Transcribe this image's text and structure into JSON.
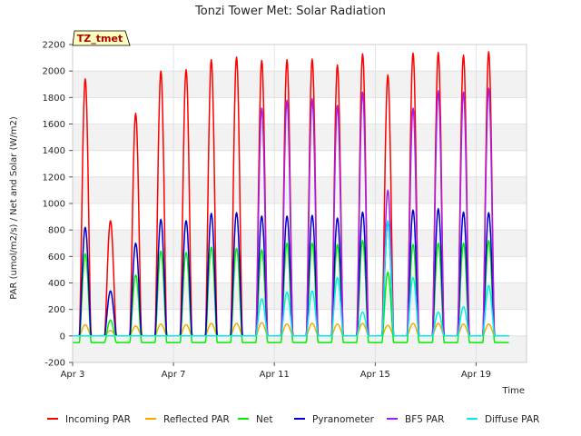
{
  "chart_data": {
    "type": "line",
    "title": "Tonzi Tower Met: Solar Radiation",
    "xlabel": "Time",
    "ylabel": "PAR (umol/m2/s) / Net and Solar (W/m2)",
    "site_label": "TZ_tmet",
    "xlim": [
      3.0,
      21.0
    ],
    "ylim": [
      -200,
      2200
    ],
    "yticks": [
      -200,
      0,
      200,
      400,
      600,
      800,
      1000,
      1200,
      1400,
      1600,
      1800,
      2000,
      2200
    ],
    "xticks": [
      {
        "value": 3,
        "label": "Apr 3"
      },
      {
        "value": 7,
        "label": "Apr 7"
      },
      {
        "value": 11,
        "label": "Apr 11"
      },
      {
        "value": 15,
        "label": "Apr 15"
      },
      {
        "value": 19,
        "label": "Apr 19"
      }
    ],
    "days": [
      3,
      4,
      5,
      6,
      7,
      8,
      9,
      10,
      11,
      12,
      13,
      14,
      15,
      16,
      17,
      18,
      19,
      20
    ],
    "series": [
      {
        "name": "Incoming PAR",
        "color": "#ff0000",
        "daily_peak": [
          1940,
          870,
          1680,
          2000,
          2010,
          2085,
          2105,
          2080,
          2085,
          2090,
          2045,
          2130,
          1970,
          2135,
          2140,
          2120,
          2145,
          0
        ],
        "night": 0
      },
      {
        "name": "Reflected PAR",
        "color": "#ffa500",
        "daily_peak": [
          85,
          40,
          75,
          90,
          85,
          95,
          95,
          100,
          90,
          95,
          90,
          95,
          80,
          95,
          95,
          90,
          90,
          0
        ],
        "night": 0
      },
      {
        "name": "Net",
        "color": "#00ee00",
        "daily_peak": [
          620,
          120,
          460,
          640,
          630,
          670,
          660,
          650,
          700,
          700,
          690,
          720,
          480,
          690,
          700,
          700,
          720,
          0
        ],
        "night": -50
      },
      {
        "name": "Pyranometer",
        "color": "#0000cc",
        "daily_peak": [
          820,
          340,
          700,
          880,
          870,
          925,
          930,
          905,
          905,
          910,
          890,
          935,
          860,
          950,
          960,
          935,
          930,
          0
        ],
        "night": 0
      },
      {
        "name": "BF5 PAR",
        "color": "#a020f0",
        "daily_peak": [
          0,
          0,
          0,
          0,
          0,
          0,
          0,
          1720,
          1780,
          1790,
          1740,
          1840,
          1100,
          1720,
          1850,
          1840,
          1870,
          0
        ],
        "night": 0
      },
      {
        "name": "Diffuse PAR",
        "color": "#00eeee",
        "daily_peak": [
          0,
          0,
          0,
          0,
          0,
          0,
          0,
          280,
          330,
          340,
          440,
          180,
          870,
          440,
          180,
          220,
          380,
          0
        ],
        "night": 0
      }
    ]
  }
}
